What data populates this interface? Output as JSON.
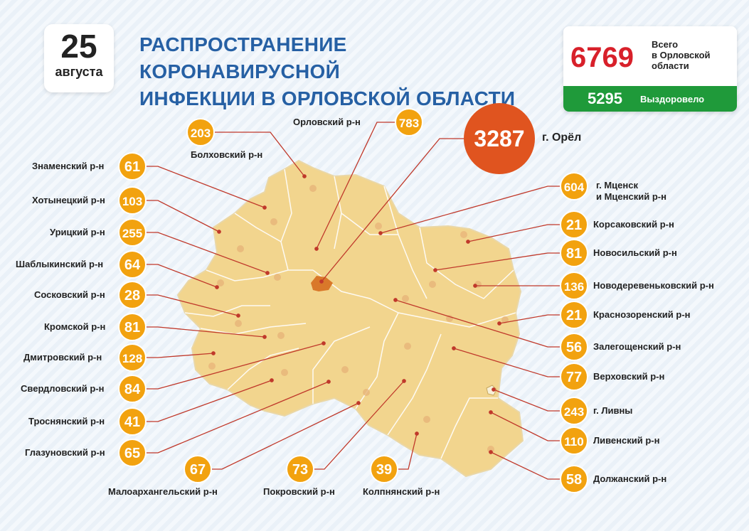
{
  "date": {
    "day": "25",
    "month": "августа"
  },
  "title_line1": "РАСПРОСТРАНЕНИЕ КОРОНАВИРУСНОЙ",
  "title_line2": "ИНФЕКЦИИ В ОРЛОВСКОЙ ОБЛАСТИ",
  "summary": {
    "total": "6769",
    "total_label_1": "Всего",
    "total_label_2": "в Орловской",
    "total_label_3": "области",
    "recovered": "5295",
    "recovered_label": "Выздоровело"
  },
  "colors": {
    "title": "#2660a4",
    "badge": "#f2a20f",
    "city_badge": "#e0541f",
    "map_fill": "#f2d58e",
    "total": "#d8202a",
    "recovered_bg": "#1f9a3a",
    "leader_line": "#c0392b"
  },
  "districts": [
    {
      "id": "orel-city",
      "name": "г. Орёл",
      "value": "3287",
      "big": true
    },
    {
      "id": "orlovsky",
      "name": "Орловский р-н",
      "value": "783"
    },
    {
      "id": "bolkhovsky",
      "name": "Болховский р-н",
      "value": "203"
    },
    {
      "id": "znamensky",
      "name": "Знаменский р-н",
      "value": "61"
    },
    {
      "id": "khotynetsky",
      "name": "Хотынецкий р-н",
      "value": "103"
    },
    {
      "id": "uritsky",
      "name": "Урицкий р-н",
      "value": "255"
    },
    {
      "id": "shablykinsky",
      "name": "Шаблыкинский р-н",
      "value": "64"
    },
    {
      "id": "sosokovsky",
      "name": "Сосковский р-н",
      "value": "28"
    },
    {
      "id": "kromskoy",
      "name": "Кромской р-н",
      "value": "81"
    },
    {
      "id": "dmitrovsky",
      "name": "Дмитровский р-н",
      "value": "128"
    },
    {
      "id": "sverdlovsky",
      "name": "Свердловский р-н",
      "value": "84"
    },
    {
      "id": "trosnyansky",
      "name": "Троснянский р-н",
      "value": "41"
    },
    {
      "id": "glazunovsky",
      "name": "Глазуновский р-н",
      "value": "65"
    },
    {
      "id": "maloarkhangelsky",
      "name": "Малоархангельский р-н",
      "value": "67"
    },
    {
      "id": "pokrovsky",
      "name": "Покровский р-н",
      "value": "73"
    },
    {
      "id": "kolpnyansky",
      "name": "Колпнянский р-н",
      "value": "39"
    },
    {
      "id": "mtsensk",
      "name": "г. Мценск\nи Мценский р-н",
      "value": "604"
    },
    {
      "id": "korsakovsky",
      "name": "Корсаковский р-н",
      "value": "21"
    },
    {
      "id": "novosilsky",
      "name": "Новосильский р-н",
      "value": "81"
    },
    {
      "id": "novoderevenkovsky",
      "name": "Новодеревеньковский р-н",
      "value": "136"
    },
    {
      "id": "krasnozorensky",
      "name": "Краснозоренский р-н",
      "value": "21"
    },
    {
      "id": "zaleгoshchensky",
      "name": "Залегощенский р-н",
      "value": "56"
    },
    {
      "id": "verkhovsky",
      "name": "Верховский р-н",
      "value": "77"
    },
    {
      "id": "livny",
      "name": "г. Ливны",
      "value": "243"
    },
    {
      "id": "livensky",
      "name": "Ливенский р-н",
      "value": "110"
    },
    {
      "id": "dolzhansky",
      "name": "Должанский р-н",
      "value": "58"
    }
  ]
}
